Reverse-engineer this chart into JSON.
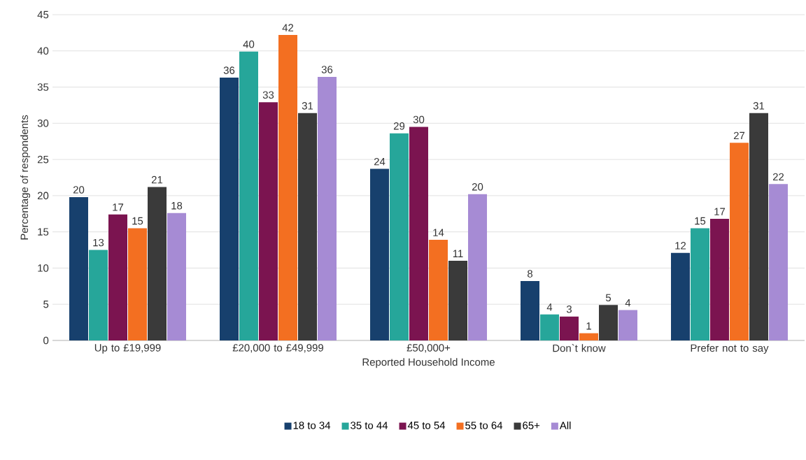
{
  "chart_data": {
    "type": "bar",
    "categories": [
      "Up to £19,999",
      "£20,000 to £49,999",
      "£50,000+",
      "Don`t know",
      "Prefer not to say"
    ],
    "xlabel": "Reported Household Income",
    "ylabel": "Percentage of respondents",
    "ylim": [
      0,
      45
    ],
    "yticks": [
      0,
      5,
      10,
      15,
      20,
      25,
      30,
      35,
      40,
      45
    ],
    "grid": "y",
    "legend": "bottom",
    "series": [
      {
        "name": "18 to 34",
        "color": "#17406d",
        "values": [
          19.8,
          36.3,
          23.7,
          8.2,
          12.1
        ],
        "value_labels": [
          "20",
          "36",
          "24",
          "8",
          "12"
        ]
      },
      {
        "name": "35 to 44",
        "color": "#26a69a",
        "values": [
          12.5,
          39.9,
          28.6,
          3.6,
          15.5
        ],
        "value_labels": [
          "13",
          "40",
          "29",
          "4",
          "15"
        ]
      },
      {
        "name": "45 to 54",
        "color": "#7b1450",
        "values": [
          17.4,
          32.9,
          29.5,
          3.3,
          16.8
        ],
        "value_labels": [
          "17",
          "33",
          "30",
          "3",
          "17"
        ]
      },
      {
        "name": "55 to 64",
        "color": "#f36f21",
        "values": [
          15.5,
          42.2,
          13.9,
          1.0,
          27.3
        ],
        "value_labels": [
          "15",
          "42",
          "14",
          "1",
          "27"
        ]
      },
      {
        "name": "65+",
        "color": "#3a3a3a",
        "values": [
          21.2,
          31.4,
          11.0,
          4.9,
          31.4
        ],
        "value_labels": [
          "21",
          "31",
          "11",
          "5",
          "31"
        ]
      },
      {
        "name": "All",
        "color": "#a68bd4",
        "values": [
          17.6,
          36.4,
          20.2,
          4.2,
          21.6
        ],
        "value_labels": [
          "18",
          "36",
          "20",
          "4",
          "22"
        ]
      }
    ]
  }
}
